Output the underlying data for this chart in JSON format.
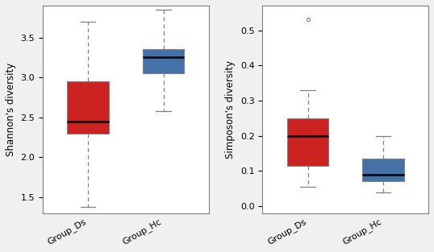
{
  "fig_width": 5.38,
  "fig_height": 3.13,
  "dpi": 100,
  "background_color": "#f0f0f0",
  "plot1": {
    "ylabel": "Shannon's diversity",
    "ylim": [
      1.3,
      3.9
    ],
    "yticks": [
      1.5,
      2.0,
      2.5,
      3.0,
      3.5
    ],
    "groups": [
      "Group_Ds",
      "Group_Hc"
    ],
    "colors": [
      "#cc2222",
      "#4472a8"
    ],
    "box_data": [
      {
        "q1": 2.3,
        "median": 2.45,
        "q3": 2.95,
        "whisker_low": 1.38,
        "whisker_high": 3.7
      },
      {
        "q1": 3.05,
        "median": 3.25,
        "q3": 3.35,
        "whisker_low": 2.58,
        "whisker_high": 3.85
      }
    ],
    "outliers": []
  },
  "plot2": {
    "ylabel": "Simposon's diversity",
    "ylim": [
      -0.02,
      0.57
    ],
    "yticks": [
      0.0,
      0.1,
      0.2,
      0.3,
      0.4,
      0.5
    ],
    "groups": [
      "Group_Ds",
      "Group_Hc"
    ],
    "colors": [
      "#cc2222",
      "#4472a8"
    ],
    "box_data": [
      {
        "q1": 0.115,
        "median": 0.2,
        "q3": 0.25,
        "whisker_low": 0.055,
        "whisker_high": 0.33
      },
      {
        "q1": 0.07,
        "median": 0.09,
        "q3": 0.135,
        "whisker_low": 0.038,
        "whisker_high": 0.2
      }
    ],
    "outliers": [
      {
        "group_idx": 0,
        "value": 0.53
      }
    ]
  }
}
